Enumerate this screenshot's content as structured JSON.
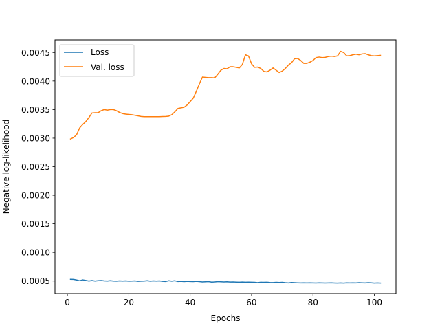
{
  "chart_data": {
    "type": "line",
    "title": "",
    "xlabel": "Epochs",
    "ylabel": "Negative log-likelihood",
    "xlim": [
      -4.05,
      107.05
    ],
    "ylim": [
      0.00028,
      0.00472
    ],
    "xticks": [
      0,
      20,
      40,
      60,
      80,
      100
    ],
    "xtick_labels": [
      "0",
      "20",
      "40",
      "60",
      "80",
      "100"
    ],
    "yticks": [
      0.0005,
      0.001,
      0.0015,
      0.002,
      0.0025,
      0.003,
      0.0035,
      0.004,
      0.0045
    ],
    "ytick_labels": [
      "0.0005",
      "0.0010",
      "0.0015",
      "0.0020",
      "0.0025",
      "0.0030",
      "0.0035",
      "0.0040",
      "0.0045"
    ],
    "grid": false,
    "legend_position": "top-left",
    "series": [
      {
        "name": "Loss",
        "color": "#1f77b4",
        "points": [
          [
            1,
            0.00053
          ],
          [
            2,
            0.000528
          ],
          [
            3,
            0.000518
          ],
          [
            4,
            0.000505
          ],
          [
            5,
            0.00052
          ],
          [
            6,
            0.00051
          ],
          [
            7,
            0.0005
          ],
          [
            8,
            0.000508
          ],
          [
            9,
            0.0005
          ],
          [
            10,
            0.000505
          ],
          [
            11,
            0.000508
          ],
          [
            12,
            0.000503
          ],
          [
            13,
            0.0005
          ],
          [
            14,
            0.000505
          ],
          [
            15,
            0.0005
          ],
          [
            16,
            0.000498
          ],
          [
            17,
            0.000502
          ],
          [
            18,
            0.0005
          ],
          [
            19,
            0.000503
          ],
          [
            20,
            0.000498
          ],
          [
            21,
            0.0005
          ],
          [
            22,
            0.000502
          ],
          [
            23,
            0.000495
          ],
          [
            24,
            0.000498
          ],
          [
            25,
            0.0005
          ],
          [
            26,
            0.000505
          ],
          [
            27,
            0.000498
          ],
          [
            28,
            0.000502
          ],
          [
            29,
            0.0005
          ],
          [
            30,
            0.000503
          ],
          [
            31,
            0.000495
          ],
          [
            32,
            0.000492
          ],
          [
            33,
            0.000505
          ],
          [
            34,
            0.000498
          ],
          [
            35,
            0.000505
          ],
          [
            36,
            0.000492
          ],
          [
            37,
            0.000495
          ],
          [
            38,
            0.00049
          ],
          [
            39,
            0.000495
          ],
          [
            40,
            0.000492
          ],
          [
            41,
            0.00049
          ],
          [
            42,
            0.000495
          ],
          [
            43,
            0.00049
          ],
          [
            44,
            0.000485
          ],
          [
            45,
            0.000488
          ],
          [
            46,
            0.00049
          ],
          [
            47,
            0.000482
          ],
          [
            48,
            0.000485
          ],
          [
            49,
            0.00049
          ],
          [
            50,
            0.000488
          ],
          [
            51,
            0.000485
          ],
          [
            52,
            0.000488
          ],
          [
            53,
            0.000483
          ],
          [
            54,
            0.000485
          ],
          [
            55,
            0.000482
          ],
          [
            56,
            0.00048
          ],
          [
            57,
            0.000483
          ],
          [
            58,
            0.00048
          ],
          [
            59,
            0.000482
          ],
          [
            60,
            0.00048
          ],
          [
            61,
            0.000478
          ],
          [
            62,
            0.000472
          ],
          [
            63,
            0.00048
          ],
          [
            64,
            0.000478
          ],
          [
            65,
            0.00048
          ],
          [
            66,
            0.000476
          ],
          [
            67,
            0.000474
          ],
          [
            68,
            0.000478
          ],
          [
            69,
            0.000476
          ],
          [
            70,
            0.000478
          ],
          [
            71,
            0.000472
          ],
          [
            72,
            0.000468
          ],
          [
            73,
            0.000475
          ],
          [
            74,
            0.000472
          ],
          [
            75,
            0.00047
          ],
          [
            76,
            0.000468
          ],
          [
            77,
            0.00047
          ],
          [
            78,
            0.000468
          ],
          [
            79,
            0.00047
          ],
          [
            80,
            0.000468
          ],
          [
            81,
            0.000466
          ],
          [
            82,
            0.00047
          ],
          [
            83,
            0.000468
          ],
          [
            84,
            0.000466
          ],
          [
            85,
            0.000468
          ],
          [
            86,
            0.00047
          ],
          [
            87,
            0.000467
          ],
          [
            88,
            0.000465
          ],
          [
            89,
            0.000468
          ],
          [
            90,
            0.000465
          ],
          [
            91,
            0.00047
          ],
          [
            92,
            0.000468
          ],
          [
            93,
            0.00047
          ],
          [
            94,
            0.000468
          ],
          [
            95,
            0.000472
          ],
          [
            96,
            0.00047
          ],
          [
            97,
            0.000468
          ],
          [
            98,
            0.000472
          ],
          [
            99,
            0.00047
          ],
          [
            100,
            0.000465
          ],
          [
            101,
            0.000468
          ],
          [
            102,
            0.000466
          ]
        ]
      },
      {
        "name": "Val. loss",
        "color": "#ff7f0e",
        "points": [
          [
            1,
            0.002985
          ],
          [
            2,
            0.00301
          ],
          [
            3,
            0.00306
          ],
          [
            4,
            0.00318
          ],
          [
            5,
            0.00324
          ],
          [
            6,
            0.00329
          ],
          [
            7,
            0.00336
          ],
          [
            8,
            0.00344
          ],
          [
            9,
            0.003445
          ],
          [
            10,
            0.003445
          ],
          [
            11,
            0.00348
          ],
          [
            12,
            0.0035
          ],
          [
            13,
            0.00349
          ],
          [
            14,
            0.0035
          ],
          [
            15,
            0.0035
          ],
          [
            16,
            0.00348
          ],
          [
            17,
            0.00345
          ],
          [
            18,
            0.00343
          ],
          [
            19,
            0.00342
          ],
          [
            20,
            0.003415
          ],
          [
            21,
            0.00341
          ],
          [
            22,
            0.0034
          ],
          [
            23,
            0.00339
          ],
          [
            24,
            0.00338
          ],
          [
            25,
            0.003375
          ],
          [
            26,
            0.003375
          ],
          [
            27,
            0.003375
          ],
          [
            28,
            0.003375
          ],
          [
            29,
            0.003375
          ],
          [
            30,
            0.003375
          ],
          [
            31,
            0.003378
          ],
          [
            32,
            0.00338
          ],
          [
            33,
            0.003385
          ],
          [
            34,
            0.00341
          ],
          [
            35,
            0.00346
          ],
          [
            36,
            0.00352
          ],
          [
            37,
            0.00353
          ],
          [
            38,
            0.00354
          ],
          [
            39,
            0.00358
          ],
          [
            40,
            0.00364
          ],
          [
            41,
            0.0037
          ],
          [
            42,
            0.00382
          ],
          [
            43,
            0.00395
          ],
          [
            44,
            0.00407
          ],
          [
            45,
            0.004065
          ],
          [
            46,
            0.00406
          ],
          [
            47,
            0.00406
          ],
          [
            48,
            0.004055
          ],
          [
            49,
            0.00412
          ],
          [
            50,
            0.00419
          ],
          [
            51,
            0.00422
          ],
          [
            52,
            0.004215
          ],
          [
            53,
            0.00425
          ],
          [
            54,
            0.00425
          ],
          [
            55,
            0.00424
          ],
          [
            56,
            0.00423
          ],
          [
            57,
            0.00429
          ],
          [
            58,
            0.00446
          ],
          [
            59,
            0.00444
          ],
          [
            60,
            0.0043
          ],
          [
            61,
            0.00424
          ],
          [
            62,
            0.004245
          ],
          [
            63,
            0.00422
          ],
          [
            64,
            0.00417
          ],
          [
            65,
            0.00416
          ],
          [
            66,
            0.00419
          ],
          [
            67,
            0.00423
          ],
          [
            68,
            0.00419
          ],
          [
            69,
            0.00415
          ],
          [
            70,
            0.004175
          ],
          [
            71,
            0.00422
          ],
          [
            72,
            0.00428
          ],
          [
            73,
            0.00432
          ],
          [
            74,
            0.00439
          ],
          [
            75,
            0.004395
          ],
          [
            76,
            0.00436
          ],
          [
            77,
            0.00431
          ],
          [
            78,
            0.00431
          ],
          [
            79,
            0.00433
          ],
          [
            80,
            0.00436
          ],
          [
            81,
            0.00441
          ],
          [
            82,
            0.00442
          ],
          [
            83,
            0.00441
          ],
          [
            84,
            0.004415
          ],
          [
            85,
            0.00443
          ],
          [
            86,
            0.004435
          ],
          [
            87,
            0.00443
          ],
          [
            88,
            0.00444
          ],
          [
            89,
            0.00452
          ],
          [
            90,
            0.0045
          ],
          [
            91,
            0.00444
          ],
          [
            92,
            0.004445
          ],
          [
            93,
            0.00446
          ],
          [
            94,
            0.00447
          ],
          [
            95,
            0.00446
          ],
          [
            96,
            0.004475
          ],
          [
            97,
            0.00448
          ],
          [
            98,
            0.00446
          ],
          [
            99,
            0.004445
          ],
          [
            100,
            0.00444
          ],
          [
            101,
            0.004445
          ],
          [
            102,
            0.00445
          ]
        ]
      }
    ]
  }
}
